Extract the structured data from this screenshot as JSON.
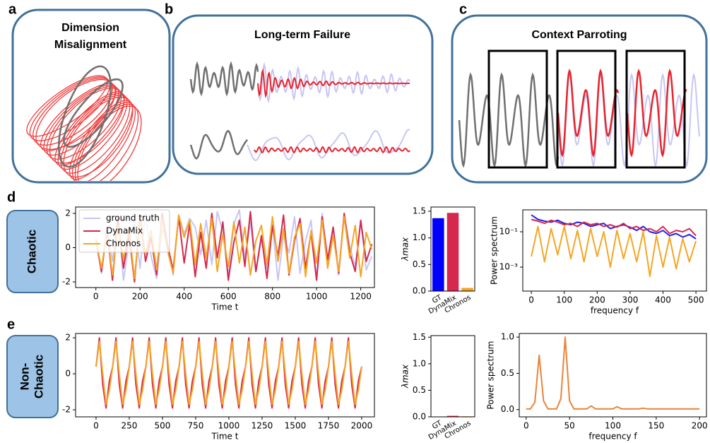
{
  "panel_labels": [
    "a",
    "b",
    "c",
    "d",
    "e"
  ],
  "illustrations": {
    "a": {
      "title": [
        "Dimension",
        "Misalignment"
      ]
    },
    "b": {
      "title": "Long-term Failure"
    },
    "c": {
      "title": "Context Parroting"
    }
  },
  "row_labels": {
    "d": "Chaotic",
    "e": [
      "Non-",
      "Chaotic"
    ]
  },
  "chart_data": [
    {
      "type": "line",
      "xlabel": "Time t",
      "xlim": [
        -92,
        1262
      ],
      "xticks": [
        0,
        200,
        400,
        600,
        800,
        1000,
        1200
      ],
      "ylim": [
        -2.33,
        2.37
      ],
      "yticks": [
        -2,
        0,
        2
      ],
      "legend": "upper left",
      "x": [
        0,
        25,
        50,
        75,
        100,
        125,
        150,
        175,
        200,
        225,
        250,
        275,
        300,
        325,
        350,
        375,
        400,
        425,
        450,
        475,
        500,
        525,
        550,
        575,
        600,
        625,
        650,
        675,
        700,
        725,
        750,
        775,
        800,
        825,
        850,
        875,
        900,
        925,
        950,
        975,
        1000,
        1025,
        1050,
        1075,
        1100,
        1125,
        1150,
        1175,
        1200,
        1225,
        1250
      ],
      "series": [
        {
          "name": "ground truth",
          "color": "#c6c6f4",
          "values": [
            0.5,
            -1.5,
            1.2,
            -0.8,
            1.8,
            -1.9,
            0.3,
            1.5,
            -1.2,
            2.0,
            -0.5,
            -1.8,
            1.1,
            0.2,
            -1.6,
            1.9,
            0.8,
            1.7,
            1.2,
            -0.4,
            1.6,
            -1.0,
            2.1,
            0.9,
            -1.7,
            1.4,
            2.2,
            -0.6,
            1.5,
            -1.4,
            0.5,
            -1.2,
            1.3,
            -1.9,
            0.7,
            -0.3,
            1.8,
            -1.5,
            0.4,
            1.6,
            -1.8,
            2.0,
            -0.9,
            1.2,
            -1.6,
            1.9,
            0.1,
            -1.1,
            1.5,
            -1.3,
            -0.5
          ]
        },
        {
          "name": "DynaMix",
          "color": "#d6284e",
          "values": [
            0.5,
            -1.4,
            1.0,
            -1.9,
            1.7,
            -1.2,
            0.8,
            -2.0,
            1.9,
            -0.8,
            0.6,
            -1.6,
            2.0,
            0.1,
            -1.3,
            1.8,
            -0.9,
            1.4,
            -1.7,
            0.9,
            -1.2,
            2.0,
            -0.6,
            1.5,
            -1.9,
            0.3,
            1.6,
            -1.1,
            2.1,
            -1.4,
            0.7,
            -1.8,
            1.3,
            -0.5,
            1.9,
            -1.6,
            0.4,
            1.7,
            -1.2,
            0.9,
            -1.9,
            1.8,
            -0.7,
            1.2,
            -1.5,
            2.0,
            -0.3,
            -1.4,
            1.6,
            -0.8,
            0.2
          ]
        },
        {
          "name": "Chronos",
          "color": "#f5a623",
          "values": [
            0.5,
            -1.2,
            0.9,
            -1.6,
            1.3,
            -0.7,
            1.1,
            -1.8,
            1.6,
            -0.4,
            1.0,
            -1.3,
            1.7,
            -0.2,
            -1.5,
            1.9,
            0.6,
            1.6,
            -1.0,
            1.4,
            -0.6,
            1.7,
            -1.4,
            0.8,
            -1.1,
            1.5,
            -0.9,
            1.2,
            -1.6,
            0.4,
            1.3,
            -1.0,
            1.8,
            -0.8,
            1.1,
            -1.5,
            0.6,
            1.4,
            -1.7,
            1.0,
            -0.9,
            1.6,
            -1.2,
            0.7,
            -1.4,
            1.8,
            -0.6,
            1.3,
            -1.7,
            0.9,
            -0.1
          ]
        }
      ]
    },
    {
      "type": "bar",
      "ylabel": "λmax",
      "categories": [
        "GT",
        "DynaMix",
        "Chronos"
      ],
      "values": [
        1.37,
        1.47,
        0.06
      ],
      "colors": [
        "#0000ff",
        "#d6284e",
        "#f5a623"
      ],
      "ylim": [
        0,
        1.58
      ],
      "yticks": [
        {
          "value": 0,
          "label": "0.0"
        },
        0.5,
        {
          "value": 1,
          "label": "1.0"
        },
        1.5
      ]
    },
    {
      "type": "line",
      "ylabel": "Power spectrum",
      "xlabel": "frequency f",
      "log_y": true,
      "xlim": [
        -26,
        532
      ],
      "xticks": [
        0,
        100,
        200,
        300,
        400,
        500
      ],
      "ylim": [
        4.4e-05,
        1.74
      ],
      "yticks": [
        {
          "value": 0.1,
          "label": "10⁻¹"
        },
        {
          "value": 0.001,
          "label": "10⁻³"
        }
      ],
      "x": [
        0,
        20,
        40,
        60,
        80,
        100,
        120,
        140,
        160,
        180,
        200,
        220,
        240,
        260,
        280,
        300,
        320,
        340,
        360,
        380,
        400,
        420,
        440,
        460,
        480,
        500
      ],
      "series": [
        {
          "color": "#2222ee",
          "values": [
            0.9,
            0.5,
            0.4,
            0.35,
            0.45,
            0.3,
            0.25,
            0.35,
            0.3,
            0.2,
            0.25,
            0.3,
            0.15,
            0.2,
            0.25,
            0.18,
            0.12,
            0.2,
            0.1,
            0.08,
            0.12,
            0.06,
            0.08,
            0.05,
            0.07,
            0.04
          ]
        },
        {
          "color": "#d6284e",
          "values": [
            0.5,
            0.4,
            0.3,
            0.45,
            0.35,
            0.25,
            0.3,
            0.2,
            0.35,
            0.25,
            0.3,
            0.2,
            0.25,
            0.18,
            0.3,
            0.15,
            0.2,
            0.12,
            0.15,
            0.1,
            0.2,
            0.08,
            0.12,
            0.1,
            0.15,
            0.06
          ]
        },
        {
          "color": "#f5a623",
          "values": [
            0.004,
            0.2,
            0.002,
            0.15,
            0.005,
            0.2,
            0.003,
            0.12,
            0.002,
            0.15,
            0.004,
            0.1,
            0.001,
            0.12,
            0.003,
            0.08,
            0.002,
            0.1,
            0.0003,
            0.06,
            0.001,
            0.05,
            0.0008,
            0.04,
            0.002,
            0.03
          ]
        }
      ]
    },
    {
      "type": "line",
      "xlabel": "Time t",
      "xlim": [
        -154,
        2096
      ],
      "xticks": [
        0,
        250,
        500,
        750,
        1000,
        1250,
        1500,
        1750,
        2000
      ],
      "ylim": [
        -2.39,
        2.24
      ],
      "yticks": [
        -2,
        0,
        2
      ],
      "x": [
        0,
        25,
        50,
        75,
        100,
        125,
        150,
        175,
        200,
        225,
        250,
        275,
        300,
        325,
        350,
        375,
        400,
        425,
        450,
        475,
        500,
        525,
        550,
        575,
        600,
        625,
        650,
        675,
        700,
        725,
        750,
        775,
        800,
        825,
        850,
        875,
        900,
        925,
        950,
        975,
        1000,
        1025,
        1050,
        1075,
        1100,
        1125,
        1150,
        1175,
        1200,
        1225,
        1250,
        1275,
        1300,
        1325,
        1350,
        1375,
        1400,
        1425,
        1450,
        1475,
        1500,
        1525,
        1550,
        1575,
        1600,
        1625,
        1650,
        1675,
        1700,
        1725,
        1750,
        1775,
        1800,
        1825,
        1850,
        1875,
        1900,
        1925,
        1950,
        1975,
        2000
      ],
      "series": [
        {
          "color": "#d6284e",
          "values": [
            0.4,
            2.0,
            -0.6,
            -1.9,
            -0.4,
            0.4,
            2.0,
            -0.6,
            -1.9,
            -0.4,
            0.4,
            2.0,
            -0.6,
            -1.9,
            -0.4,
            0.4,
            2.0,
            -0.6,
            -1.9,
            -0.4,
            0.4,
            2.0,
            -0.6,
            -1.9,
            -0.4,
            0.4,
            2.0,
            -0.6,
            -1.9,
            -0.4,
            0.4,
            2.0,
            -0.6,
            -1.9,
            -0.4,
            0.4,
            2.0,
            -0.6,
            -1.9,
            -0.4,
            0.4,
            2.0,
            -0.6,
            -1.9,
            -0.4,
            0.4,
            2.0,
            -0.6,
            -1.9,
            -0.4,
            0.4,
            2.0,
            -0.6,
            -1.9,
            -0.4,
            0.4,
            2.0,
            -0.6,
            -1.9,
            -0.4,
            0.4,
            2.0,
            -0.6,
            -1.9,
            -0.4,
            0.4,
            2.0,
            -0.6,
            -1.9,
            -0.4,
            0.4,
            2.0,
            -0.6,
            -1.9,
            -0.4,
            0.4,
            2.0,
            -0.6,
            -1.9,
            -0.4,
            0.4
          ]
        },
        {
          "color": "#f5a623",
          "values": [
            0.4,
            1.8,
            0.0,
            -1.7,
            -0.9,
            0.4,
            1.8,
            0.0,
            -1.7,
            -0.9,
            0.4,
            1.8,
            0.0,
            -1.7,
            -0.9,
            0.4,
            1.8,
            0.0,
            -1.7,
            -0.9,
            0.4,
            1.8,
            0.0,
            -1.7,
            -0.9,
            0.4,
            1.8,
            0.0,
            -1.7,
            -0.9,
            0.4,
            1.8,
            0.0,
            -1.7,
            -0.9,
            0.4,
            1.8,
            0.0,
            -1.7,
            -0.9,
            0.4,
            1.8,
            0.0,
            -1.7,
            -0.9,
            0.4,
            1.8,
            0.0,
            -1.7,
            -0.9,
            0.4,
            1.8,
            0.0,
            -1.7,
            -0.9,
            0.4,
            1.8,
            0.0,
            -1.7,
            -0.9,
            0.4,
            1.8,
            0.0,
            -1.7,
            -0.9,
            0.4,
            1.8,
            0.0,
            -1.7,
            -0.9,
            0.4,
            1.8,
            0.0,
            -1.7,
            -0.9,
            0.4,
            1.8,
            0.0,
            -1.7,
            -0.9,
            0.4
          ]
        }
      ]
    },
    {
      "type": "bar",
      "ylabel": "λmax",
      "categories": [
        "GT",
        "DynaMix",
        "Chronos"
      ],
      "values": [
        0,
        0.02,
        0.01
      ],
      "colors": [
        "#0000ff",
        "#d6284e",
        "#f5a623"
      ],
      "ylim": [
        0,
        1.53
      ],
      "yticks": [
        {
          "value": 0,
          "label": "0.0"
        },
        0.5,
        {
          "value": 1,
          "label": "1.0"
        },
        1.5
      ]
    },
    {
      "type": "line",
      "ylabel": "Power spectrum",
      "xlabel": "frequency f",
      "xlim": [
        -8,
        208
      ],
      "xticks": [
        0,
        50,
        100,
        150,
        200
      ],
      "ylim": [
        -0.1,
        1.05
      ],
      "yticks": [
        {
          "value": 0,
          "label": "0.0"
        },
        0.5,
        {
          "value": 1,
          "label": "1.0"
        }
      ],
      "x": [
        0,
        5,
        10,
        15,
        20,
        25,
        30,
        35,
        40,
        45,
        50,
        55,
        60,
        65,
        70,
        75,
        80,
        85,
        90,
        95,
        100,
        105,
        110,
        115,
        120,
        125,
        130,
        135,
        140,
        145,
        150,
        155,
        160,
        165,
        170,
        175,
        180,
        185,
        190,
        195,
        200
      ],
      "series": [
        {
          "color": "#e8843a",
          "values": [
            0.01,
            0.01,
            0.1,
            0.75,
            0.12,
            0.01,
            0.01,
            0.01,
            0.15,
            1.0,
            0.12,
            0.01,
            0.01,
            0.01,
            0.01,
            0.05,
            0.01,
            0.01,
            0.01,
            0.01,
            0.01,
            0.04,
            0.01,
            0.01,
            0.01,
            0.01,
            0.01,
            0.02,
            0.01,
            0.01,
            0.01,
            0.01,
            0.01,
            0.01,
            0.01,
            0.01,
            0.01,
            0.01,
            0.01,
            0.01,
            0.01
          ]
        }
      ]
    }
  ]
}
